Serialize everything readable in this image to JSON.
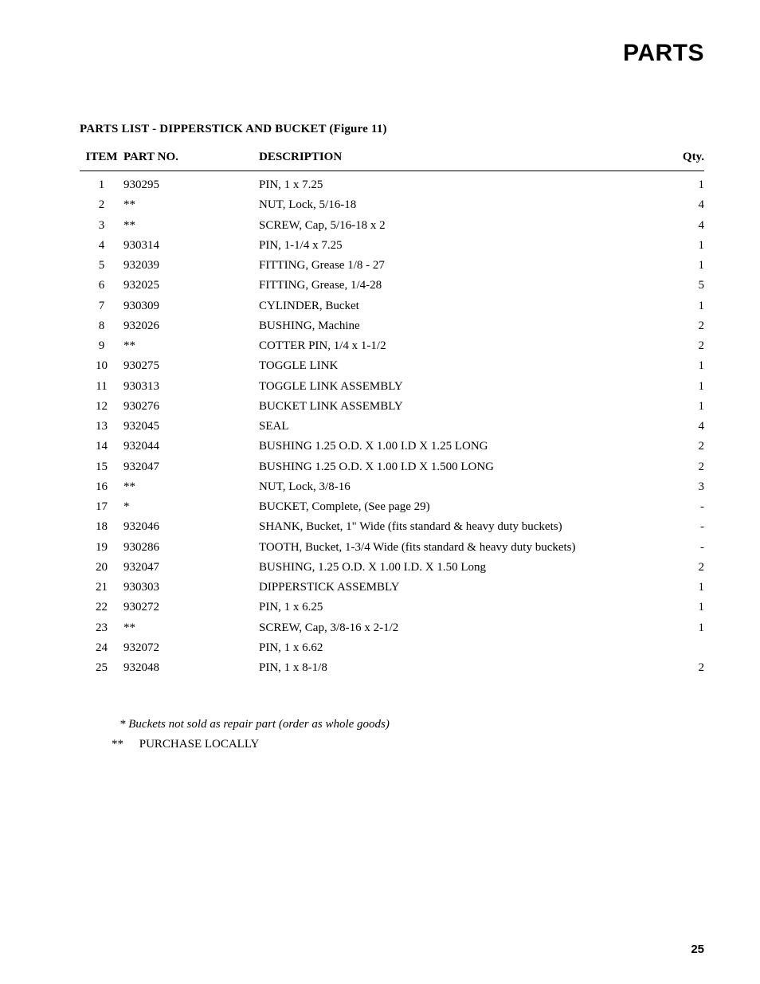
{
  "page_title": "PARTS",
  "section_title": "PARTS LIST - DIPPERSTICK AND BUCKET (Figure 11)",
  "columns": {
    "item": "ITEM",
    "partno": "PART NO.",
    "desc": "DESCRIPTION",
    "qty": "Qty."
  },
  "rows": [
    {
      "item": "1",
      "partno": "930295",
      "desc": "PIN, 1 x 7.25",
      "qty": "1"
    },
    {
      "item": "2",
      "partno": "**",
      "desc": "NUT, Lock, 5/16-18",
      "qty": "4"
    },
    {
      "item": "3",
      "partno": "**",
      "desc": "SCREW, Cap, 5/16-18 x 2",
      "qty": "4"
    },
    {
      "item": "4",
      "partno": "930314",
      "desc": "PIN, 1-1/4 x 7.25",
      "qty": "1"
    },
    {
      "item": "5",
      "partno": "932039",
      "desc": "FITTING, Grease 1/8 - 27",
      "qty": "1"
    },
    {
      "item": "6",
      "partno": "932025",
      "desc": "FITTING, Grease, 1/4-28",
      "qty": "5"
    },
    {
      "item": "7",
      "partno": "930309",
      "desc": "CYLINDER, Bucket",
      "qty": "1"
    },
    {
      "item": "8",
      "partno": "932026",
      "desc": "BUSHING, Machine",
      "qty": "2"
    },
    {
      "item": "9",
      "partno": "**",
      "desc": "COTTER PIN, 1/4 x 1-1/2",
      "qty": "2"
    },
    {
      "item": "10",
      "partno": "930275",
      "desc": "TOGGLE LINK",
      "qty": "1"
    },
    {
      "item": "11",
      "partno": "930313",
      "desc": "TOGGLE LINK ASSEMBLY",
      "qty": "1"
    },
    {
      "item": "12",
      "partno": "930276",
      "desc": "BUCKET LINK ASSEMBLY",
      "qty": "1"
    },
    {
      "item": "13",
      "partno": "932045",
      "desc": "SEAL",
      "qty": "4"
    },
    {
      "item": "14",
      "partno": "932044",
      "desc": "BUSHING 1.25 O.D. X 1.00 I.D X 1.25 LONG",
      "qty": "2"
    },
    {
      "item": "15",
      "partno": "932047",
      "desc": "BUSHING 1.25 O.D. X 1.00 I.D X 1.500  LONG",
      "qty": "2"
    },
    {
      "item": "16",
      "partno": "**",
      "desc": "NUT, Lock, 3/8-16",
      "qty": "3"
    },
    {
      "item": "17",
      "partno": "*",
      "desc": "BUCKET, Complete, (See page 29)",
      "qty": "-"
    },
    {
      "item": "18",
      "partno": "932046",
      "desc": "SHANK, Bucket, 1\" Wide (fits standard & heavy duty buckets)",
      "qty": "-"
    },
    {
      "item": "19",
      "partno": "930286",
      "desc": "TOOTH, Bucket, 1-3/4 Wide (fits standard & heavy duty buckets)",
      "qty": "-"
    },
    {
      "item": "20",
      "partno": "932047",
      "desc": "BUSHING, 1.25 O.D. X 1.00 I.D. X 1.50 Long",
      "qty": "2"
    },
    {
      "item": "21",
      "partno": "930303",
      "desc": "DIPPERSTICK ASSEMBLY",
      "qty": "1"
    },
    {
      "item": "22",
      "partno": "930272",
      "desc": "PIN, 1 x 6.25",
      "qty": "1"
    },
    {
      "item": "23",
      "partno": "**",
      "desc": "SCREW, Cap, 3/8-16 x 2-1/2",
      "qty": "1"
    },
    {
      "item": "24",
      "partno": "932072",
      "desc": "PIN, 1 x  6.62",
      "qty": ""
    },
    {
      "item": "25",
      "partno": "932048",
      "desc": "PIN, 1 x 8-1/8",
      "qty": "2"
    }
  ],
  "footnote1_mark": "*",
  "footnote1_text": "Buckets not sold as repair part (order as whole goods)",
  "footnote2_mark": "**",
  "footnote2_text": "PURCHASE LOCALLY",
  "page_number": "25"
}
